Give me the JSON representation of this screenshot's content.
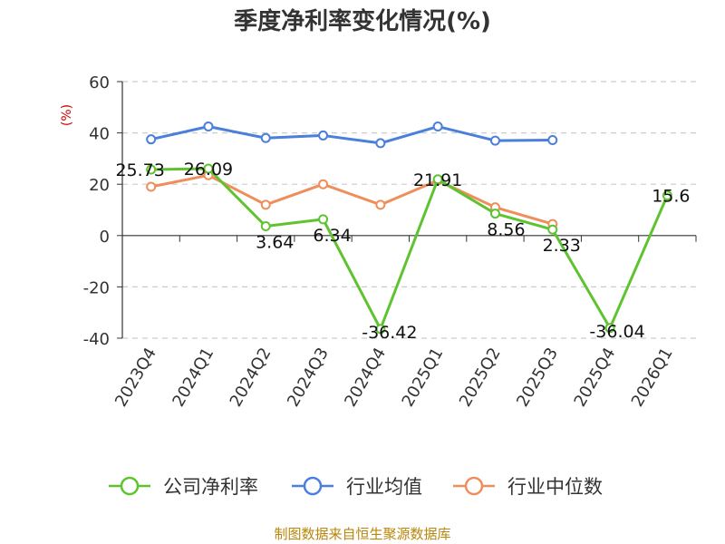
{
  "chart_data": {
    "type": "line",
    "title": "季度净利率变化情况(%)",
    "ylabel": "(%)",
    "xlabel": "",
    "ylim": [
      -40,
      60
    ],
    "yticks": [
      -40,
      -20,
      0,
      20,
      40,
      60
    ],
    "grid": true,
    "categories": [
      "2023Q4",
      "2024Q1",
      "2024Q2",
      "2024Q3",
      "2024Q4",
      "2025Q1",
      "2025Q2",
      "2025Q3",
      "2025Q4",
      "2026Q1"
    ],
    "series": [
      {
        "name": "公司净利率",
        "color": "#5ec32f",
        "values": [
          25.73,
          26.09,
          3.64,
          6.34,
          -36.42,
          21.91,
          8.56,
          2.33,
          -36.04,
          15.6
        ],
        "labels": [
          "25.73",
          "26.09",
          "3.64",
          "6.34",
          "-36.42",
          "21.91",
          "8.56",
          "2.33",
          "-36.04",
          "15.6"
        ]
      },
      {
        "name": "行业均值",
        "color": "#4a7fdb",
        "values": [
          37.5,
          42.5,
          38.0,
          39.0,
          36.0,
          42.5,
          37.0,
          37.2,
          null,
          null
        ]
      },
      {
        "name": "行业中位数",
        "color": "#f08e5b",
        "values": [
          19.0,
          23.5,
          12.0,
          20.0,
          12.0,
          21.5,
          11.0,
          4.5,
          null,
          null
        ]
      }
    ],
    "legend_position": "bottom"
  },
  "footer": {
    "source": "制图数据来自恒生聚源数据库"
  },
  "colors": {
    "title": "#333333",
    "axis": "#333333",
    "grid": "#cccccc",
    "unit": "#cc0000",
    "footer": "#b8860b"
  }
}
